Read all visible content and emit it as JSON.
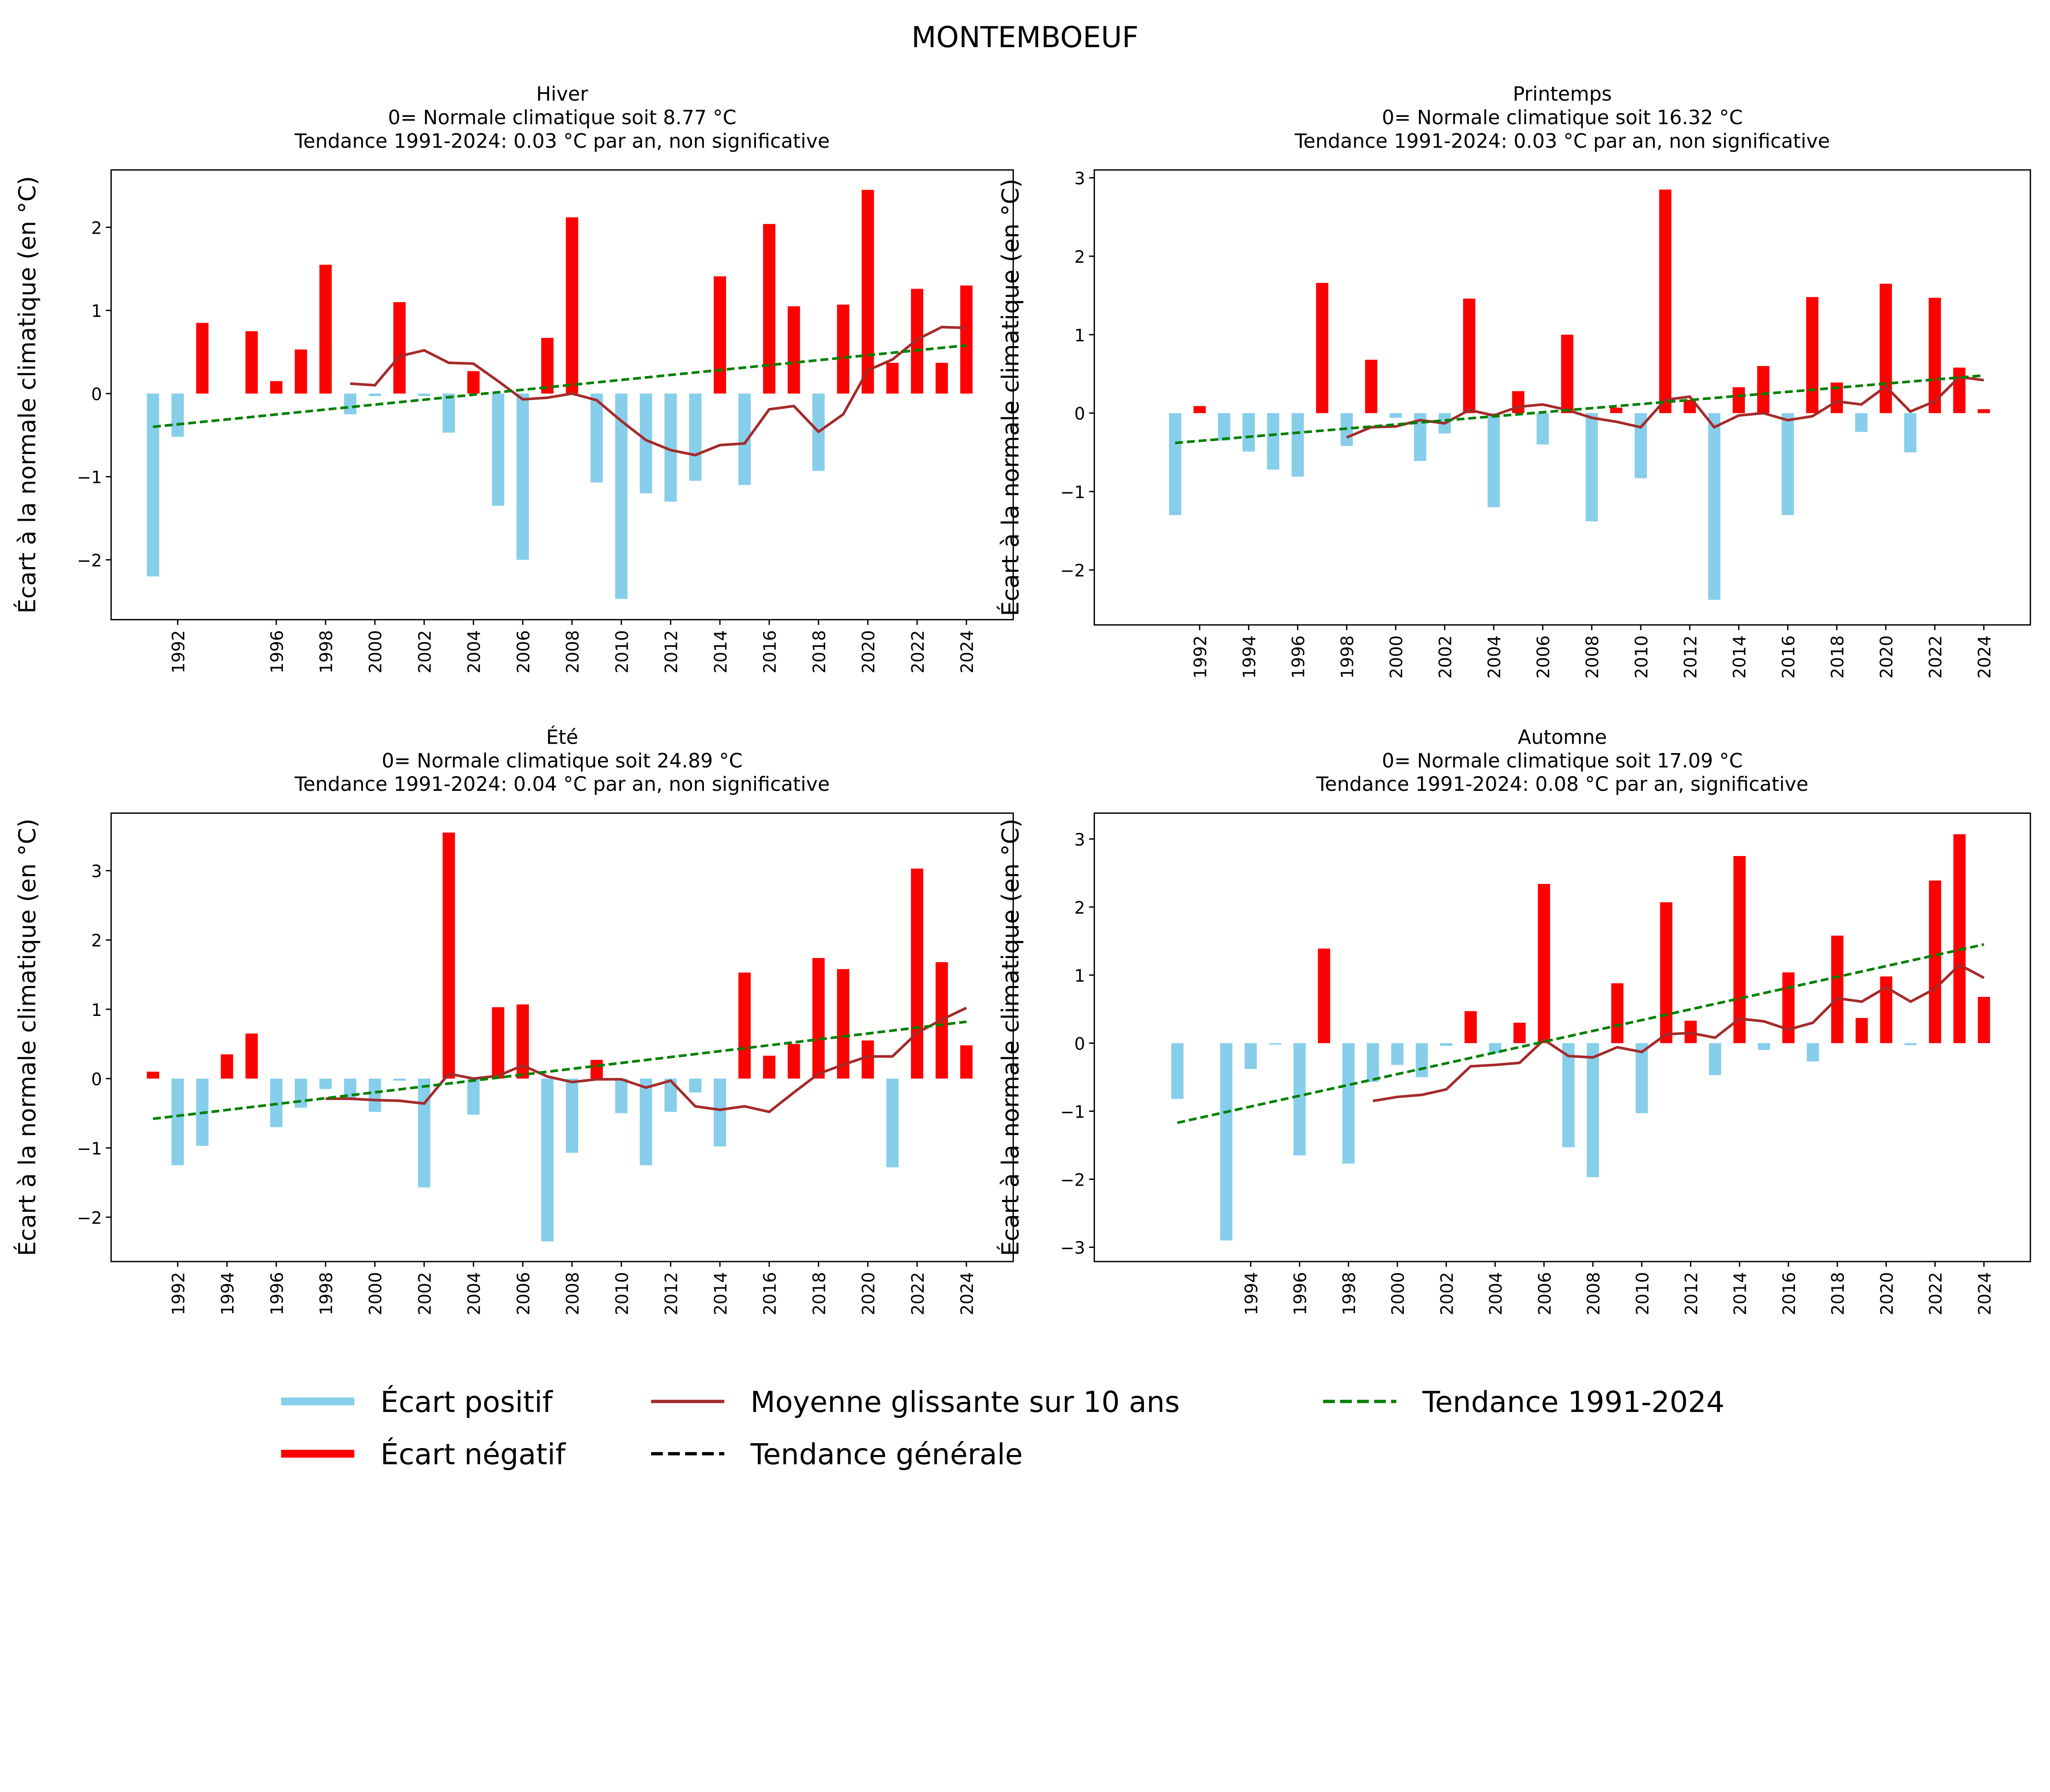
{
  "title": "MONTEMBOEUF",
  "colors": {
    "positive": "#87ceeb",
    "negative": "#ff0000",
    "moving_avg": "#a52a2a",
    "trend": "#008000",
    "general_trend": "#000000"
  },
  "legend": {
    "position": "bottom",
    "items": [
      {
        "label": "Écart positif",
        "style": "thick-line",
        "color": "#87ceeb"
      },
      {
        "label": "Écart négatif",
        "style": "thick-line",
        "color": "#ff0000"
      },
      {
        "label": "Moyenne glissante sur 10 ans",
        "style": "line",
        "color": "#a52a2a"
      },
      {
        "label": "Tendance générale",
        "style": "dashed",
        "color": "#000000"
      },
      {
        "label": "Tendance 1991-2024",
        "style": "dashed",
        "color": "#008000"
      }
    ]
  },
  "chart_data": [
    {
      "type": "bar",
      "title": [
        "Hiver",
        "0= Normale climatique soit 8.77 °C",
        "Tendance 1991-2024: 0.03 °C par an, non significative"
      ],
      "ylabel": "Écart à la normale climatique (en °C)",
      "xlim": [
        1989.3,
        2025.9
      ],
      "ylim": [
        -2.72,
        2.69
      ],
      "yticks": [
        -2,
        -1,
        0,
        1,
        2
      ],
      "xticks": [
        1992,
        1996,
        1998,
        2000,
        2002,
        2004,
        2006,
        2008,
        2010,
        2012,
        2014,
        2016,
        2018,
        2020,
        2022,
        2024
      ],
      "years": [
        1991,
        1992,
        1993,
        1995,
        1996,
        1997,
        1998,
        1999,
        2000,
        2001,
        2002,
        2003,
        2004,
        2005,
        2006,
        2007,
        2008,
        2009,
        2010,
        2011,
        2012,
        2013,
        2014,
        2015,
        2016,
        2017,
        2018,
        2019,
        2020,
        2021,
        2022,
        2023,
        2024
      ],
      "values": [
        -2.2,
        -0.52,
        0.85,
        0.75,
        0.15,
        0.53,
        1.55,
        -0.25,
        -0.03,
        1.1,
        -0.03,
        -0.47,
        0.27,
        -1.35,
        -2.0,
        0.67,
        2.12,
        -1.07,
        -2.47,
        -1.2,
        -1.3,
        -1.05,
        1.41,
        -1.1,
        2.04,
        1.05,
        -0.93,
        1.07,
        2.45,
        0.37,
        1.26,
        0.37,
        1.3
      ],
      "moving_avg": {
        "years": [
          1999,
          2000,
          2001,
          2002,
          2003,
          2004,
          2005,
          2006,
          2007,
          2008,
          2009,
          2010,
          2011,
          2012,
          2013,
          2014,
          2015,
          2016,
          2017,
          2018,
          2019,
          2020,
          2021,
          2022,
          2023,
          2024
        ],
        "values": [
          0.12,
          0.1,
          0.45,
          0.52,
          0.37,
          0.36,
          0.15,
          -0.07,
          -0.05,
          0.0,
          -0.08,
          -0.33,
          -0.56,
          -0.68,
          -0.74,
          -0.62,
          -0.6,
          -0.19,
          -0.15,
          -0.46,
          -0.25,
          0.28,
          0.41,
          0.65,
          0.8,
          0.79
        ]
      },
      "trend": {
        "years": [
          1991,
          2024
        ],
        "values": [
          -0.4,
          0.58
        ]
      }
    },
    {
      "type": "bar",
      "title": [
        "Printemps",
        "0= Normale climatique soit 16.32 °C",
        "Tendance 1991-2024: 0.03 °C par an, non significative"
      ],
      "ylabel": "Écart à la normale climatique (en °C)",
      "xlim": [
        1987.7,
        2025.9
      ],
      "ylim": [
        -2.7,
        3.1
      ],
      "yticks": [
        -2,
        -1,
        0,
        1,
        2,
        3
      ],
      "xticks": [
        1992,
        1994,
        1996,
        1998,
        2000,
        2002,
        2004,
        2006,
        2008,
        2010,
        2012,
        2014,
        2016,
        2018,
        2020,
        2022,
        2024
      ],
      "years": [
        1991,
        1992,
        1993,
        1994,
        1995,
        1996,
        1997,
        1998,
        1999,
        2000,
        2001,
        2002,
        2003,
        2004,
        2005,
        2006,
        2007,
        2008,
        2009,
        2010,
        2011,
        2012,
        2013,
        2014,
        2015,
        2016,
        2017,
        2018,
        2019,
        2020,
        2021,
        2022,
        2023,
        2024
      ],
      "values": [
        -1.3,
        0.09,
        -0.35,
        -0.49,
        -0.72,
        -0.81,
        1.66,
        -0.42,
        0.68,
        -0.06,
        -0.61,
        -0.26,
        1.46,
        -1.2,
        0.28,
        -0.4,
        1.0,
        -1.38,
        0.07,
        -0.83,
        2.85,
        0.17,
        -2.38,
        0.33,
        0.6,
        -1.3,
        1.48,
        0.39,
        -0.24,
        1.65,
        -0.5,
        1.47,
        0.58,
        0.05
      ],
      "moving_avg": {
        "years": [
          1998,
          1999,
          2000,
          2001,
          2002,
          2003,
          2004,
          2005,
          2006,
          2007,
          2008,
          2009,
          2010,
          2011,
          2012,
          2013,
          2014,
          2015,
          2016,
          2017,
          2018,
          2019,
          2020,
          2021,
          2022,
          2023,
          2024
        ],
        "values": [
          -0.31,
          -0.18,
          -0.17,
          -0.09,
          -0.13,
          0.04,
          -0.03,
          0.08,
          0.11,
          0.04,
          -0.06,
          -0.11,
          -0.18,
          0.17,
          0.21,
          -0.18,
          -0.03,
          0.0,
          -0.09,
          -0.04,
          0.15,
          0.11,
          0.34,
          0.02,
          0.15,
          0.46,
          0.42
        ]
      },
      "trend": {
        "years": [
          1991,
          2024
        ],
        "values": [
          -0.38,
          0.48
        ]
      }
    },
    {
      "type": "bar",
      "title": [
        "Été",
        "0= Normale climatique soit 24.89 °C",
        "Tendance 1991-2024: 0.04 °C par an, non significative"
      ],
      "ylabel": "Écart à la normale climatique (en °C)",
      "xlim": [
        1989.3,
        2025.9
      ],
      "ylim": [
        -2.64,
        3.83
      ],
      "yticks": [
        -2,
        -1,
        0,
        1,
        2,
        3
      ],
      "xticks": [
        1992,
        1994,
        1996,
        1998,
        2000,
        2002,
        2004,
        2006,
        2008,
        2010,
        2012,
        2014,
        2016,
        2018,
        2020,
        2022,
        2024
      ],
      "years": [
        1991,
        1992,
        1993,
        1994,
        1995,
        1996,
        1997,
        1998,
        1999,
        2000,
        2001,
        2002,
        2003,
        2004,
        2005,
        2006,
        2007,
        2008,
        2009,
        2010,
        2011,
        2012,
        2013,
        2014,
        2015,
        2016,
        2017,
        2018,
        2019,
        2020,
        2021,
        2022,
        2023,
        2024
      ],
      "values": [
        0.1,
        -1.25,
        -0.97,
        0.35,
        0.65,
        -0.7,
        -0.42,
        -0.15,
        -0.3,
        -0.48,
        -0.03,
        -1.57,
        3.55,
        -0.52,
        1.03,
        1.07,
        -2.35,
        -1.07,
        0.27,
        -0.5,
        -1.25,
        -0.48,
        -0.2,
        -0.98,
        1.53,
        0.33,
        0.5,
        1.74,
        1.58,
        0.55,
        -1.28,
        3.03,
        1.68,
        0.48
      ],
      "moving_avg": {
        "years": [
          1998,
          1999,
          2000,
          2001,
          2002,
          2003,
          2004,
          2005,
          2006,
          2007,
          2008,
          2009,
          2010,
          2011,
          2012,
          2013,
          2014,
          2015,
          2016,
          2017,
          2018,
          2019,
          2020,
          2021,
          2022,
          2023,
          2024
        ],
        "values": [
          -0.29,
          -0.29,
          -0.31,
          -0.32,
          -0.36,
          0.07,
          0.0,
          0.04,
          0.19,
          0.03,
          -0.05,
          -0.01,
          -0.01,
          -0.13,
          -0.03,
          -0.4,
          -0.45,
          -0.4,
          -0.48,
          -0.2,
          0.07,
          0.2,
          0.32,
          0.32,
          0.66,
          0.85,
          1.02
        ]
      },
      "trend": {
        "years": [
          1991,
          2024
        ],
        "values": [
          -0.58,
          0.82
        ]
      }
    },
    {
      "type": "bar",
      "title": [
        "Automne",
        "0= Normale climatique soit 17.09 °C",
        "Tendance 1991-2024: 0.08 °C par an, significative"
      ],
      "ylabel": "Écart à la normale climatique (en °C)",
      "xlim": [
        1987.6,
        2025.9
      ],
      "ylim": [
        -3.21,
        3.38
      ],
      "yticks": [
        -3,
        -2,
        -1,
        0,
        1,
        2,
        3
      ],
      "xticks": [
        1994,
        1996,
        1998,
        2000,
        2002,
        2004,
        2006,
        2008,
        2010,
        2012,
        2014,
        2016,
        2018,
        2020,
        2022,
        2024
      ],
      "years": [
        1991,
        1993,
        1994,
        1995,
        1996,
        1997,
        1998,
        1999,
        2000,
        2001,
        2002,
        2003,
        2004,
        2005,
        2006,
        2007,
        2008,
        2009,
        2010,
        2011,
        2012,
        2013,
        2014,
        2015,
        2016,
        2017,
        2018,
        2019,
        2020,
        2021,
        2022,
        2023,
        2024
      ],
      "values": [
        -0.82,
        -2.9,
        -0.38,
        -0.02,
        -1.65,
        1.39,
        -1.77,
        -0.57,
        -0.32,
        -0.5,
        -0.04,
        0.47,
        -0.15,
        0.3,
        2.34,
        -1.53,
        -1.97,
        0.88,
        -1.03,
        2.07,
        0.33,
        -0.47,
        2.75,
        -0.1,
        1.04,
        -0.27,
        1.58,
        0.37,
        0.98,
        -0.03,
        2.39,
        3.07,
        0.68
      ],
      "moving_avg": {
        "years": [
          1999,
          2000,
          2001,
          2002,
          2003,
          2004,
          2005,
          2006,
          2007,
          2008,
          2009,
          2010,
          2011,
          2012,
          2013,
          2014,
          2015,
          2016,
          2017,
          2018,
          2019,
          2020,
          2021,
          2022,
          2023,
          2024
        ],
        "values": [
          -0.85,
          -0.79,
          -0.76,
          -0.68,
          -0.34,
          -0.32,
          -0.29,
          0.05,
          -0.19,
          -0.21,
          -0.06,
          -0.13,
          0.13,
          0.15,
          0.08,
          0.36,
          0.32,
          0.2,
          0.3,
          0.66,
          0.61,
          0.82,
          0.61,
          0.8,
          1.15,
          0.96
        ]
      },
      "trend": {
        "years": [
          1991,
          2024
        ],
        "values": [
          -1.17,
          1.45
        ]
      }
    }
  ]
}
